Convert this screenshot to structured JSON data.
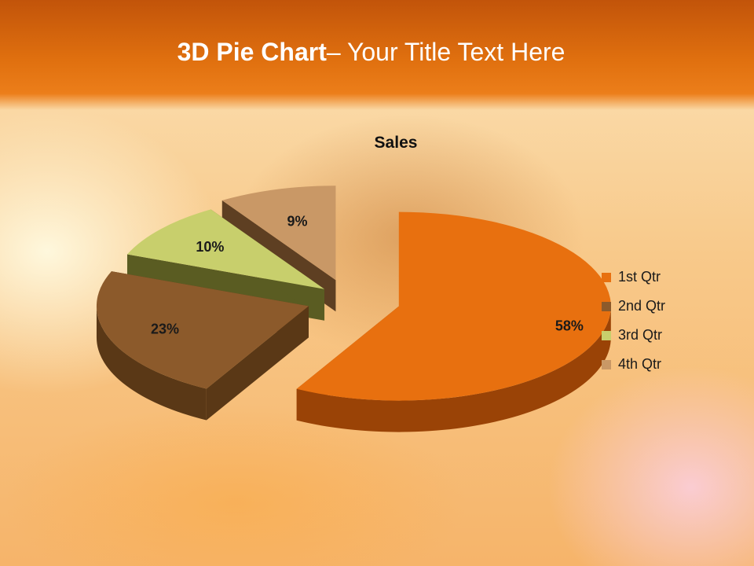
{
  "slide": {
    "title_bold": "3D Pie Chart",
    "title_rest": "– Your Title Text Here"
  },
  "chart_data": {
    "type": "pie",
    "title": "Sales",
    "categories": [
      "1st Qtr",
      "2nd Qtr",
      "3rd Qtr",
      "4th Qtr"
    ],
    "values": [
      58,
      23,
      10,
      9
    ],
    "data_labels": [
      "58%",
      "23%",
      "10%",
      "9%"
    ],
    "colors": [
      "#e8700f",
      "#8c5a2b",
      "#c8cf6c",
      "#c99866"
    ],
    "side_colors": [
      "#9a4306",
      "#5a3816",
      "#5a5c22",
      "#5e3f22"
    ],
    "exploded": true,
    "three_d": true,
    "legend_position": "right"
  }
}
